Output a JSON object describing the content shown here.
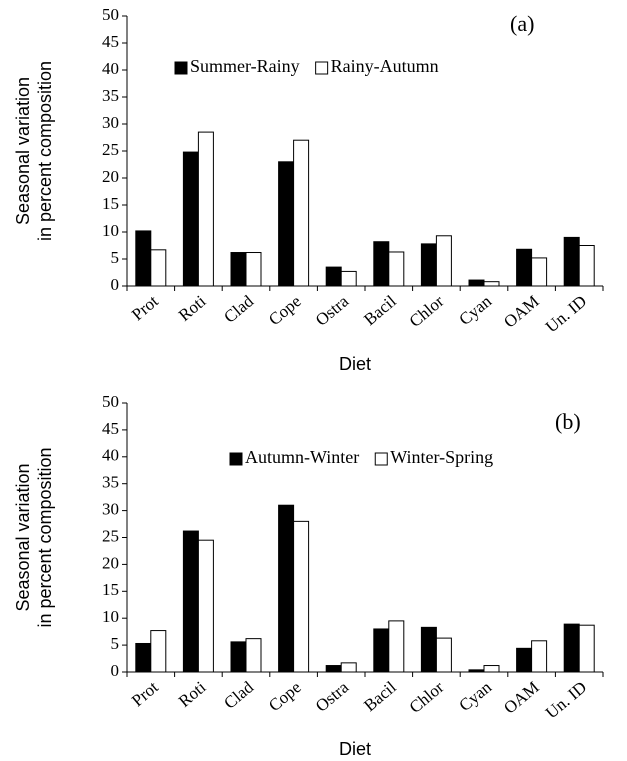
{
  "chart_data": [
    {
      "type": "bar",
      "annotation": "(a)",
      "ylabel": [
        "Seasonal variation",
        "in percent composition"
      ],
      "xlabel": "Diet",
      "categories": [
        "Prot",
        "Roti",
        "Clad",
        "Cope",
        "Ostra",
        "Bacil",
        "Chlor",
        "Cyan",
        "OAM",
        "Un. ID"
      ],
      "series": [
        {
          "name": "Summer-Rainy",
          "color": "#000000",
          "values": [
            10.2,
            24.8,
            6.2,
            23.0,
            3.5,
            8.2,
            7.8,
            1.1,
            6.8,
            9.0
          ]
        },
        {
          "name": "Rainy-Autumn",
          "color": "#ffffff",
          "values": [
            6.7,
            28.5,
            6.2,
            27.0,
            2.7,
            6.3,
            9.3,
            0.8,
            5.2,
            7.5
          ]
        }
      ],
      "ylim": [
        0,
        50
      ],
      "yticks": [
        0,
        5,
        10,
        15,
        20,
        25,
        30,
        35,
        40,
        45,
        50
      ],
      "grid": false,
      "legend": "top"
    },
    {
      "type": "bar",
      "annotation": "(b)",
      "ylabel": [
        "Seasonal variation",
        "in percent composition"
      ],
      "xlabel": "Diet",
      "categories": [
        "Prot",
        "Roti",
        "Clad",
        "Cope",
        "Ostra",
        "Bacil",
        "Chlor",
        "Cyan",
        "OAM",
        "Un. ID"
      ],
      "series": [
        {
          "name": "Autumn-Winter",
          "color": "#000000",
          "values": [
            5.3,
            26.2,
            5.6,
            31.0,
            1.2,
            8.0,
            8.3,
            0.4,
            4.4,
            8.9
          ]
        },
        {
          "name": "Winter-Spring",
          "color": "#ffffff",
          "values": [
            7.7,
            24.5,
            6.2,
            28.0,
            1.7,
            9.5,
            6.3,
            1.2,
            5.8,
            8.7
          ]
        }
      ],
      "ylim": [
        0,
        50
      ],
      "yticks": [
        0,
        5,
        10,
        15,
        20,
        25,
        30,
        35,
        40,
        45,
        50
      ],
      "grid": false,
      "legend": "top"
    }
  ]
}
